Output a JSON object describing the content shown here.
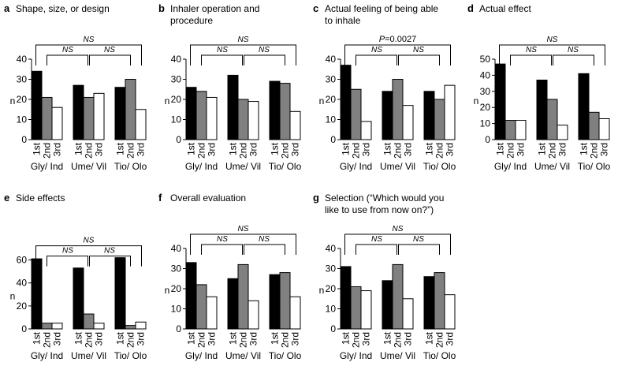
{
  "figure": {
    "bar_colors": {
      "1st": "#000000",
      "2nd": "#808080",
      "3rd": "#ffffff"
    },
    "stroke_color": "#000000"
  },
  "chart_data": [
    {
      "letter": "a",
      "title_lines": [
        "Shape, size, or design"
      ],
      "type": "bar",
      "ylabel": "n",
      "ylim": [
        0,
        40
      ],
      "yticks": [
        "0",
        "10",
        "20",
        "30",
        "40"
      ],
      "categories": [
        "Gly/ Ind",
        "Ume/ Vil",
        "Tio/ Olo"
      ],
      "series_labels": [
        "1st",
        "2nd",
        "3rd"
      ],
      "values": [
        [
          34,
          21,
          16
        ],
        [
          27,
          21,
          23
        ],
        [
          26,
          30,
          15
        ]
      ],
      "sig_outer": "NS",
      "sig_inner": [
        "NS",
        "NS"
      ]
    },
    {
      "letter": "b",
      "title_lines": [
        "Inhaler operation and",
        "procedure"
      ],
      "type": "bar",
      "ylabel": "n",
      "ylim": [
        0,
        40
      ],
      "yticks": [
        "0",
        "10",
        "20",
        "30",
        "40"
      ],
      "categories": [
        "Gly/ Ind",
        "Ume/ Vil",
        "Tio/ Olo"
      ],
      "series_labels": [
        "1st",
        "2nd",
        "3rd"
      ],
      "values": [
        [
          26,
          24,
          21
        ],
        [
          32,
          20,
          19
        ],
        [
          29,
          28,
          14
        ]
      ],
      "sig_outer": "NS",
      "sig_inner": [
        "NS",
        "NS"
      ]
    },
    {
      "letter": "c",
      "title_lines": [
        "Actual feeling of being able",
        "to inhale"
      ],
      "type": "bar",
      "ylabel": "n",
      "ylim": [
        0,
        40
      ],
      "yticks": [
        "0",
        "10",
        "20",
        "30",
        "40"
      ],
      "categories": [
        "Gly/ Ind",
        "Ume/ Vil",
        "Tio/ Olo"
      ],
      "series_labels": [
        "1st",
        "2nd",
        "3rd"
      ],
      "values": [
        [
          37,
          25,
          9
        ],
        [
          24,
          30,
          17
        ],
        [
          24,
          20,
          27
        ]
      ],
      "sig_outer_p_label": "P",
      "sig_outer_p_value": "=0.0027",
      "sig_inner": [
        "NS",
        "NS"
      ]
    },
    {
      "letter": "d",
      "title_lines": [
        "Actual effect"
      ],
      "type": "bar",
      "ylabel": "n",
      "ylim": [
        0,
        50
      ],
      "yticks": [
        "0",
        "10",
        "20",
        "30",
        "40",
        "50"
      ],
      "categories": [
        "Gly/ Ind",
        "Ume/ Vil",
        "Tio/ Olo"
      ],
      "series_labels": [
        "1st",
        "2nd",
        "3rd"
      ],
      "values": [
        [
          47,
          12,
          12
        ],
        [
          37,
          25,
          9
        ],
        [
          41,
          17,
          13
        ]
      ],
      "sig_outer": "NS",
      "sig_inner": [
        "NS",
        "NS"
      ]
    },
    {
      "letter": "e",
      "title_lines": [
        "Side effects"
      ],
      "type": "bar",
      "ylabel": "n",
      "ylim": [
        0,
        70
      ],
      "yticks": [
        "0",
        "20",
        "40",
        "60"
      ],
      "ytick_values": [
        0,
        20,
        40,
        60
      ],
      "categories": [
        "Gly/ Ind",
        "Ume/ Vil",
        "Tio/ Olo"
      ],
      "series_labels": [
        "1st",
        "2nd",
        "3rd"
      ],
      "values": [
        [
          61,
          5,
          5
        ],
        [
          53,
          13,
          5
        ],
        [
          62,
          3,
          6
        ]
      ],
      "sig_outer": "NS",
      "sig_inner": [
        "NS",
        "NS"
      ]
    },
    {
      "letter": "f",
      "title_lines": [
        "Overall evaluation"
      ],
      "type": "bar",
      "ylabel": "n",
      "ylim": [
        0,
        40
      ],
      "yticks": [
        "0",
        "10",
        "20",
        "30",
        "40"
      ],
      "categories": [
        "Gly/ Ind",
        "Ume/ Vil",
        "Tio/ Olo"
      ],
      "series_labels": [
        "1st",
        "2nd",
        "3rd"
      ],
      "values": [
        [
          33,
          22,
          16
        ],
        [
          25,
          32,
          14
        ],
        [
          27,
          28,
          16
        ]
      ],
      "sig_outer": "NS",
      "sig_inner": [
        "NS",
        "NS"
      ]
    },
    {
      "letter": "g",
      "title_lines": [
        "Selection (“Which would you",
        "like to use from now on?”)"
      ],
      "type": "bar",
      "ylabel": "n",
      "ylim": [
        0,
        40
      ],
      "yticks": [
        "0",
        "10",
        "20",
        "30",
        "40"
      ],
      "categories": [
        "Gly/ Ind",
        "Ume/ Vil",
        "Tio/ Olo"
      ],
      "series_labels": [
        "1st",
        "2nd",
        "3rd"
      ],
      "values": [
        [
          31,
          21,
          19
        ],
        [
          24,
          32,
          15
        ],
        [
          26,
          28,
          17
        ]
      ],
      "sig_outer": "NS",
      "sig_inner": [
        "NS",
        "NS"
      ]
    }
  ]
}
